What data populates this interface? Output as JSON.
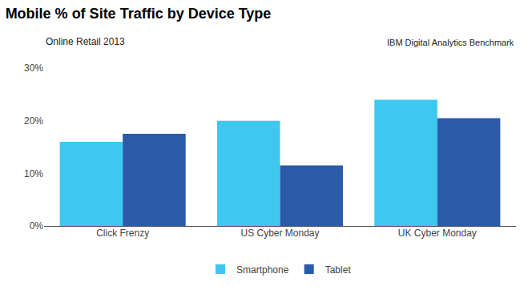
{
  "chart_data": {
    "type": "bar",
    "title": "Mobile % of Site Traffic by Device Type",
    "subtitle": "Online Retail 2013",
    "annotations": [
      "IBM Digital Analytics Benchmark"
    ],
    "categories": [
      "Click Frenzy",
      "US Cyber Monday",
      "UK Cyber Monday"
    ],
    "series": [
      {
        "name": "Smartphone",
        "color": "#3EC8F0",
        "values": [
          16,
          20,
          24
        ]
      },
      {
        "name": "Tablet",
        "color": "#2B5BA8",
        "values": [
          17.5,
          11.5,
          20.5
        ]
      }
    ],
    "ylim": [
      0,
      30
    ],
    "yticks": [
      {
        "value": 0,
        "label": "0%"
      },
      {
        "value": 10,
        "label": "10%"
      },
      {
        "value": 20,
        "label": "20%"
      },
      {
        "value": 30,
        "label": "30%"
      }
    ],
    "grid": false,
    "legend": "bottom"
  }
}
